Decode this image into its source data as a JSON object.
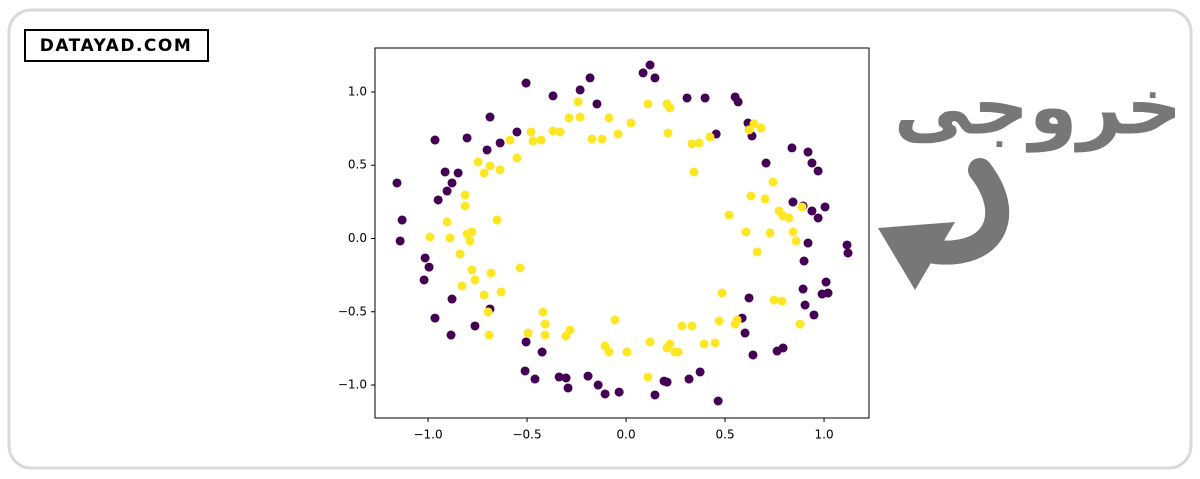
{
  "logo": "DATAYAD.COM",
  "caption": "خروجی",
  "chart_data": {
    "type": "scatter",
    "xlim": [
      -1.268,
      1.227
    ],
    "ylim": [
      -1.225,
      1.3
    ],
    "xticks": [
      {
        "value": -1.0,
        "label": "−1.0"
      },
      {
        "value": -0.5,
        "label": "−0.5"
      },
      {
        "value": 0.0,
        "label": "0.0"
      },
      0.5,
      {
        "value": 1.0,
        "label": "1.0"
      }
    ],
    "yticks": [
      {
        "value": -1.0,
        "label": "−1.0"
      },
      {
        "value": -0.5,
        "label": "−0.5"
      },
      {
        "value": 0.0,
        "label": "0.0"
      },
      0.5,
      {
        "value": 1.0,
        "label": "1.0"
      }
    ],
    "grid": false,
    "series": [
      {
        "color": "#440154",
        "x": [
          -1.157,
          -1.131,
          -1.141,
          -0.965,
          -0.949,
          -0.914,
          -0.879,
          -0.848,
          -0.803,
          -0.687,
          -0.702,
          -0.636,
          -0.551,
          -0.505,
          -0.369,
          -0.232,
          -0.182,
          -0.147,
          0.086,
          0.121,
          0.146,
          0.308,
          0.399,
          0.455,
          0.551,
          0.566,
          0.616,
          0.636,
          0.707,
          0.838,
          0.919,
          0.939,
          0.97,
          0.843,
          0.894,
          0.939,
          1.005,
          0.97,
          0.919,
          0.899,
          1.116,
          1.121,
          1.01,
          1.02,
          0.99,
          0.894,
          0.904,
          0.949,
          0.621,
          0.586,
          0.601,
          0.641,
          0.793,
          0.763,
          0.465,
          0.374,
          0.318,
          0.192,
          0.207,
          0.146,
          -0.035,
          -0.106,
          -0.141,
          -0.192,
          -0.293,
          -0.303,
          -0.338,
          -0.46,
          -0.51,
          -0.505,
          -0.424,
          -0.687,
          -0.763,
          -0.879,
          -0.884,
          -0.965,
          -1.02,
          -0.995,
          -1.015,
          -0.904
        ],
        "values": [
          0.379,
          0.126,
          -0.017,
          0.672,
          0.263,
          0.454,
          0.379,
          0.447,
          0.686,
          0.829,
          0.604,
          0.652,
          0.727,
          1.061,
          0.973,
          1.014,
          1.096,
          0.918,
          1.13,
          1.184,
          1.096,
          0.959,
          0.959,
          0.713,
          0.966,
          0.932,
          0.788,
          0.7,
          0.515,
          0.618,
          0.59,
          0.515,
          0.461,
          0.249,
          0.222,
          0.188,
          0.215,
          0.14,
          -0.031,
          -0.154,
          -0.044,
          -0.099,
          -0.297,
          -0.372,
          -0.379,
          -0.345,
          -0.454,
          -0.522,
          -0.406,
          -0.543,
          -0.645,
          -0.795,
          -0.747,
          -0.768,
          -1.109,
          -0.911,
          -0.959,
          -0.973,
          -0.98,
          -1.068,
          -1.048,
          -1.061,
          -1.0,
          -0.939,
          -1.02,
          -0.952,
          -0.945,
          -0.959,
          -0.904,
          -0.706,
          -0.775,
          -0.481,
          -0.597,
          -0.413,
          -0.659,
          -0.543,
          -0.283,
          -0.195,
          -0.133,
          0.324
        ]
      },
      {
        "color": "#fde725",
        "x": [
          -0.99,
          -0.904,
          -0.889,
          -0.838,
          -0.813,
          -0.813,
          -0.803,
          -0.778,
          -0.788,
          -0.778,
          -0.828,
          -0.763,
          -0.717,
          -0.697,
          -0.692,
          -0.652,
          -0.682,
          -0.631,
          -0.535,
          -0.747,
          -0.717,
          -0.687,
          -0.636,
          -0.586,
          -0.551,
          -0.48,
          -0.47,
          -0.429,
          -0.369,
          -0.333,
          -0.288,
          -0.242,
          -0.232,
          -0.172,
          -0.121,
          -0.086,
          -0.04,
          0.025,
          0.111,
          0.207,
          0.222,
          0.212,
          0.333,
          0.369,
          0.424,
          0.343,
          0.646,
          0.621,
          0.682,
          0.52,
          0.631,
          0.702,
          0.742,
          0.773,
          0.793,
          0.823,
          0.889,
          0.843,
          0.859,
          0.727,
          0.606,
          0.662,
          0.485,
          0.561,
          0.551,
          0.747,
          0.788,
          0.879,
          0.47,
          0.394,
          0.45,
          0.283,
          0.333,
          0.222,
          0.207,
          0.247,
          0.263,
          0.121,
          0.111,
          -0.106,
          -0.086,
          0.005,
          -0.056,
          -0.283,
          -0.303,
          -0.409,
          -0.419,
          -0.409,
          -0.495
        ],
        "values": [
          0.01,
          0.113,
          0.003,
          -0.106,
          0.297,
          0.222,
          0.031,
          0.044,
          -0.017,
          -0.215,
          -0.324,
          -0.283,
          -0.386,
          -0.502,
          -0.659,
          0.126,
          -0.236,
          -0.365,
          -0.201,
          0.522,
          0.447,
          0.495,
          0.468,
          0.672,
          0.549,
          0.727,
          0.666,
          0.672,
          0.734,
          0.727,
          0.823,
          0.932,
          0.829,
          0.679,
          0.679,
          0.823,
          0.713,
          0.788,
          0.918,
          0.918,
          0.891,
          0.72,
          0.645,
          0.652,
          0.693,
          0.454,
          0.782,
          0.741,
          0.754,
          0.16,
          0.29,
          0.27,
          0.385,
          0.188,
          0.154,
          0.14,
          0.215,
          0.044,
          -0.017,
          0.038,
          0.044,
          -0.092,
          -0.372,
          -0.556,
          -0.584,
          -0.42,
          -0.427,
          -0.584,
          -0.563,
          -0.72,
          -0.713,
          -0.597,
          -0.597,
          -0.72,
          -0.747,
          -0.775,
          -0.775,
          -0.706,
          -0.945,
          -0.734,
          -0.775,
          -0.775,
          -0.556,
          -0.625,
          -0.666,
          -0.584,
          -0.502,
          -0.659,
          -0.645
        ]
      }
    ]
  }
}
